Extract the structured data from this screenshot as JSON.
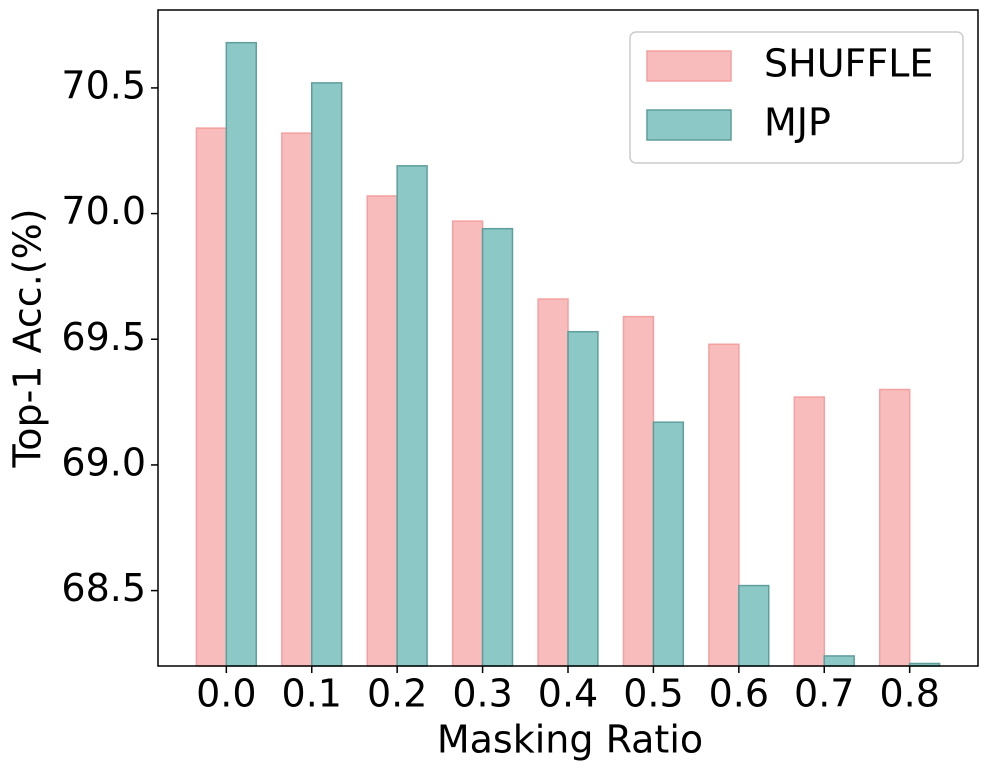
{
  "chart_data": {
    "type": "bar",
    "x_label": "Masking Ratio",
    "y_label": "Top-1 Acc.(%)",
    "categories": [
      "0.0",
      "0.1",
      "0.2",
      "0.3",
      "0.4",
      "0.5",
      "0.6",
      "0.7",
      "0.8"
    ],
    "series": [
      {
        "name": "SHUFFLE",
        "color": "#f8bcbc",
        "edge_color": "#f4a0a0",
        "values": [
          70.34,
          70.32,
          70.07,
          69.97,
          69.66,
          69.59,
          69.48,
          69.27,
          69.3
        ]
      },
      {
        "name": "MJP",
        "color": "#8bc8c6",
        "edge_color": "#5e9e9c",
        "values": [
          70.68,
          70.52,
          70.19,
          69.94,
          69.53,
          69.17,
          68.52,
          68.24,
          68.21
        ]
      }
    ],
    "ylim": [
      68.2,
      70.81
    ],
    "yticks": [
      {
        "value": 68.5,
        "label": "68.5"
      },
      {
        "value": 69,
        "label": "69.0"
      },
      {
        "value": 69.5,
        "label": "69.5"
      },
      {
        "value": 70,
        "label": "70.0"
      },
      {
        "value": 70.5,
        "label": "70.5"
      }
    ],
    "legend": "upper right",
    "grid": false
  }
}
